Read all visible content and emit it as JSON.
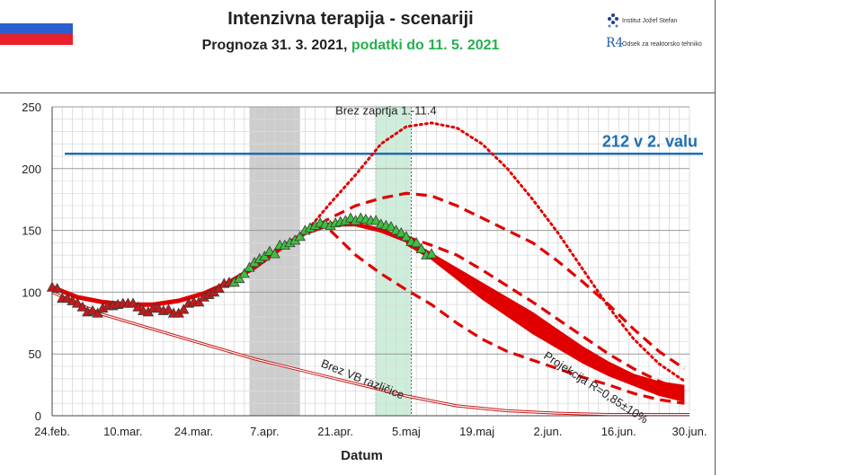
{
  "header": {
    "title": "Intenzivna terapija - scenariji",
    "subtitle_part1": "Prognoza 31. 3. 2021, ",
    "subtitle_part2": "podatki do 11. 5. 2021",
    "logo_institute": "Institut Jožef Stefan",
    "logo_department": "Odsek za reaktorsko tehniko",
    "logo_mark": "R4"
  },
  "colors": {
    "accent_red": "#e00000",
    "reference_line": "#1f6fb2",
    "green_highlight": "#22b14c",
    "grey_band": "#c8c8c8",
    "green_band": "#c8ecd6"
  },
  "chart_data": {
    "type": "line",
    "title": "Intenzivna terapija - scenariji",
    "xlabel": "Datum",
    "ylabel": "",
    "ylim": [
      0,
      250
    ],
    "xlim": [
      0,
      126
    ],
    "x_unit": "days since 24.feb.2021",
    "yticks": [
      0,
      50,
      100,
      150,
      200,
      250
    ],
    "xticks": [
      {
        "day": 0,
        "label": "24.feb."
      },
      {
        "day": 14,
        "label": "10.mar."
      },
      {
        "day": 28,
        "label": "24.mar."
      },
      {
        "day": 42,
        "label": "7.apr."
      },
      {
        "day": 56,
        "label": "21.apr."
      },
      {
        "day": 70,
        "label": "5.maj"
      },
      {
        "day": 84,
        "label": "19.maj"
      },
      {
        "day": 98,
        "label": "2.jun."
      },
      {
        "day": 112,
        "label": "16.jun."
      },
      {
        "day": 126,
        "label": "30.jun."
      }
    ],
    "grid": true,
    "reference_line": {
      "y": 212,
      "label": "212 v 2. valu"
    },
    "bands": [
      {
        "name": "grey-period",
        "x_start": 39,
        "x_end": 49
      },
      {
        "name": "green-period",
        "x_start": 64,
        "x_end": 71
      }
    ],
    "annotations": [
      {
        "text": "Brez zaprtja 1.-11.4",
        "x": 66,
        "y": 244
      },
      {
        "text": "Brez VB različice",
        "x": 53,
        "y": 40
      },
      {
        "text": "Projekcija R=0,85±10%",
        "x": 97,
        "y": 47
      }
    ],
    "observed_red": {
      "x": [
        0,
        1,
        2,
        3,
        4,
        5,
        6,
        7,
        8,
        9,
        10,
        11,
        12,
        13,
        14,
        15,
        16,
        17,
        18,
        19,
        20,
        21,
        22,
        23,
        24,
        25,
        26,
        27,
        28,
        29,
        30,
        31,
        32,
        33,
        34,
        35
      ],
      "y": [
        104,
        103,
        95,
        95,
        93,
        91,
        88,
        84,
        85,
        83,
        87,
        89,
        89,
        90,
        91,
        91,
        91,
        88,
        85,
        84,
        87,
        87,
        85,
        86,
        83,
        83,
        86,
        91,
        92,
        92,
        96,
        98,
        100,
        103,
        107,
        108
      ]
    },
    "observed_green": {
      "x": [
        36,
        37,
        38,
        39,
        40,
        41,
        42,
        43,
        44,
        45,
        46,
        47,
        48,
        49,
        50,
        51,
        52,
        53,
        54,
        55,
        56,
        57,
        58,
        59,
        60,
        61,
        62,
        63,
        64,
        65,
        66,
        67,
        68,
        69,
        70,
        71,
        72,
        73,
        74,
        75
      ],
      "y": [
        108,
        111,
        115,
        120,
        124,
        127,
        129,
        133,
        131,
        138,
        138,
        140,
        142,
        145,
        150,
        152,
        154,
        156,
        155,
        154,
        156,
        157,
        158,
        160,
        158,
        160,
        159,
        158,
        158,
        155,
        154,
        153,
        150,
        148,
        145,
        141,
        140,
        135,
        130,
        131
      ]
    },
    "series": [
      {
        "name": "Model fit",
        "style": "thick",
        "x": [
          0,
          5,
          10,
          15,
          20,
          25,
          30,
          35,
          40,
          45,
          50,
          55,
          60,
          65,
          70,
          75
        ],
        "y": [
          104,
          96,
          92,
          90,
          90,
          93,
          99,
          108,
          120,
          135,
          148,
          155,
          155,
          150,
          142,
          130
        ]
      },
      {
        "name": "Brez zaprtja 1.-11.4",
        "style": "dotted",
        "x": [
          50,
          55,
          60,
          65,
          70,
          75,
          80,
          85,
          90,
          95,
          100,
          105,
          110,
          115,
          120,
          125
        ],
        "y": [
          148,
          172,
          195,
          220,
          234,
          237,
          233,
          220,
          200,
          175,
          148,
          118,
          88,
          62,
          42,
          28
        ]
      },
      {
        "name": "Dashed upper",
        "style": "dashed",
        "x": [
          50,
          55,
          60,
          65,
          70,
          75,
          80,
          85,
          90,
          95,
          100,
          105,
          110,
          115,
          120,
          125
        ],
        "y": [
          148,
          160,
          170,
          176,
          180,
          178,
          170,
          160,
          150,
          140,
          125,
          108,
          90,
          70,
          52,
          38
        ]
      },
      {
        "name": "Dashed lower",
        "style": "dashed",
        "x": [
          55,
          60,
          65,
          70,
          75,
          80,
          85,
          90,
          95,
          100,
          105,
          110,
          115,
          120,
          125
        ],
        "y": [
          150,
          130,
          115,
          102,
          90,
          75,
          62,
          52,
          45,
          38,
          31,
          25,
          18,
          13,
          10
        ]
      },
      {
        "name": "Dashed middle",
        "style": "dashed",
        "x": [
          70,
          75,
          80,
          85,
          90,
          95,
          100,
          105,
          110,
          115,
          120,
          125
        ],
        "y": [
          145,
          138,
          130,
          118,
          105,
          92,
          78,
          64,
          50,
          38,
          28,
          20
        ]
      },
      {
        "name": "Brez VB različice",
        "style": "double",
        "x": [
          0,
          10,
          20,
          30,
          40,
          50,
          60,
          70,
          80,
          90,
          100,
          110,
          120,
          126
        ],
        "y": [
          100,
          82,
          70,
          58,
          46,
          36,
          26,
          16,
          8,
          4,
          2,
          1,
          1,
          1
        ]
      },
      {
        "name": "Projekcija R=0,85±10% upper",
        "style": "band-top",
        "x": [
          70,
          75,
          80,
          85,
          90,
          95,
          100,
          105,
          110,
          115,
          120,
          125
        ],
        "y": [
          143,
          132,
          120,
          108,
          96,
          84,
          70,
          56,
          44,
          34,
          28,
          25
        ]
      },
      {
        "name": "Projekcija R=0,85±10% lower",
        "style": "band-bottom",
        "x": [
          70,
          75,
          80,
          85,
          90,
          95,
          100,
          105,
          110,
          115,
          120,
          125
        ],
        "y": [
          138,
          126,
          110,
          94,
          80,
          66,
          54,
          42,
          32,
          24,
          16,
          11
        ]
      }
    ]
  }
}
